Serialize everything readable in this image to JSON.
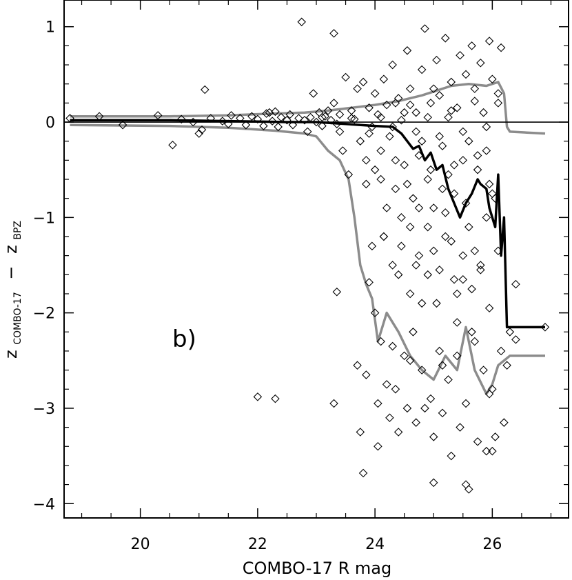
{
  "chart_data": {
    "type": "scatter",
    "panel_label": "b)",
    "xlabel": "COMBO-17 R mag",
    "ylabel": {
      "z1": "z",
      "s1": "COMBO-17",
      "minus": "−",
      "z2": "z",
      "s2": "BPZ"
    },
    "xlim": [
      18.7,
      27.3
    ],
    "ylim": [
      -4.15,
      1.28
    ],
    "x_ticks": [
      20,
      22,
      24,
      26
    ],
    "y_ticks": [
      1,
      0,
      -1,
      -2,
      -3,
      -4
    ],
    "y_tick_labels": [
      "1",
      "0",
      "−1",
      "−2",
      "−3",
      "−4"
    ],
    "zero_line": 0,
    "marker": "open-diamond",
    "colors": {
      "points": "#000000",
      "median": "#000000",
      "envelope": "#8c8c8c",
      "frame": "#000000"
    },
    "points": [
      [
        18.8,
        0.04
      ],
      [
        19.3,
        0.06
      ],
      [
        19.7,
        -0.03
      ],
      [
        20.3,
        0.07
      ],
      [
        20.55,
        -0.24
      ],
      [
        20.7,
        0.03
      ],
      [
        20.9,
        0.0
      ],
      [
        21.0,
        -0.12
      ],
      [
        21.05,
        -0.08
      ],
      [
        21.1,
        0.34
      ],
      [
        21.2,
        0.04
      ],
      [
        21.4,
        0.01
      ],
      [
        21.5,
        -0.02
      ],
      [
        21.55,
        0.07
      ],
      [
        21.7,
        0.04
      ],
      [
        21.8,
        -0.03
      ],
      [
        21.9,
        0.06
      ],
      [
        22.0,
        0.03
      ],
      [
        22.1,
        -0.04
      ],
      [
        22.15,
        0.09
      ],
      [
        22.2,
        0.1
      ],
      [
        22.25,
        0.01
      ],
      [
        22.3,
        0.11
      ],
      [
        22.35,
        -0.05
      ],
      [
        22.4,
        0.05
      ],
      [
        22.5,
        0.02
      ],
      [
        22.55,
        0.08
      ],
      [
        22.6,
        -0.03
      ],
      [
        22.7,
        0.04
      ],
      [
        22.75,
        1.05
      ],
      [
        22.8,
        0.02
      ],
      [
        22.85,
        -0.1
      ],
      [
        22.9,
        0.05
      ],
      [
        22.95,
        0.3
      ],
      [
        23.0,
        0.0
      ],
      [
        23.05,
        0.1
      ],
      [
        23.1,
        -0.04
      ],
      [
        23.15,
        0.06
      ],
      [
        23.2,
        0.12
      ],
      [
        23.25,
        0.02
      ],
      [
        23.3,
        0.93
      ],
      [
        23.3,
        0.2
      ],
      [
        23.35,
        -0.02
      ],
      [
        23.4,
        0.08
      ],
      [
        23.45,
        -0.3
      ],
      [
        23.5,
        0.47
      ],
      [
        23.55,
        -0.55
      ],
      [
        23.6,
        0.12
      ],
      [
        23.65,
        0.03
      ],
      [
        23.7,
        0.35
      ],
      [
        23.75,
        -0.2
      ],
      [
        23.8,
        0.42
      ],
      [
        23.85,
        -0.65
      ],
      [
        23.9,
        0.15
      ],
      [
        23.95,
        -0.05
      ],
      [
        24.0,
        0.3
      ],
      [
        24.0,
        -0.5
      ],
      [
        24.05,
        0.08
      ],
      [
        24.1,
        -0.3
      ],
      [
        24.15,
        0.45
      ],
      [
        24.2,
        0.18
      ],
      [
        24.25,
        -0.15
      ],
      [
        24.3,
        0.6
      ],
      [
        24.35,
        -0.7
      ],
      [
        24.4,
        0.25
      ],
      [
        24.45,
        0.02
      ],
      [
        24.5,
        -0.45
      ],
      [
        24.55,
        0.75
      ],
      [
        24.6,
        0.35
      ],
      [
        24.65,
        -0.8
      ],
      [
        24.7,
        0.1
      ],
      [
        24.75,
        -0.35
      ],
      [
        24.8,
        0.55
      ],
      [
        24.85,
        0.98
      ],
      [
        24.9,
        -0.6
      ],
      [
        24.95,
        0.2
      ],
      [
        25.0,
        -0.9
      ],
      [
        25.05,
        0.65
      ],
      [
        25.1,
        0.28
      ],
      [
        25.15,
        -0.25
      ],
      [
        25.2,
        0.88
      ],
      [
        25.25,
        -0.55
      ],
      [
        25.3,
        0.42
      ],
      [
        25.35,
        -0.75
      ],
      [
        25.4,
        0.15
      ],
      [
        25.45,
        0.7
      ],
      [
        25.5,
        -0.4
      ],
      [
        25.55,
        0.5
      ],
      [
        25.6,
        -0.2
      ],
      [
        25.65,
        0.8
      ],
      [
        25.7,
        0.35
      ],
      [
        25.75,
        -0.5
      ],
      [
        25.8,
        0.62
      ],
      [
        25.85,
        0.1
      ],
      [
        25.9,
        -0.3
      ],
      [
        25.95,
        0.85
      ],
      [
        26.0,
        0.45
      ],
      [
        26.05,
        -0.8
      ],
      [
        26.1,
        0.2
      ],
      [
        26.15,
        0.78
      ],
      [
        24.3,
        -0.05
      ],
      [
        24.5,
        0.1
      ],
      [
        24.7,
        -0.1
      ],
      [
        24.9,
        0.05
      ],
      [
        25.1,
        -0.15
      ],
      [
        25.3,
        0.12
      ],
      [
        25.5,
        -0.1
      ],
      [
        25.7,
        0.22
      ],
      [
        25.9,
        -0.05
      ],
      [
        26.1,
        0.3
      ],
      [
        23.1,
        0.05
      ],
      [
        23.4,
        -0.1
      ],
      [
        23.6,
        0.04
      ],
      [
        23.9,
        -0.12
      ],
      [
        24.1,
        0.05
      ],
      [
        24.35,
        0.2
      ],
      [
        24.6,
        0.18
      ],
      [
        24.8,
        -0.2
      ],
      [
        25.0,
        0.35
      ],
      [
        25.25,
        0.05
      ],
      [
        22.0,
        -2.88
      ],
      [
        22.3,
        -2.9
      ],
      [
        23.3,
        -2.95
      ],
      [
        23.35,
        -1.78
      ],
      [
        23.7,
        -2.55
      ],
      [
        23.75,
        -3.25
      ],
      [
        23.8,
        -3.68
      ],
      [
        23.85,
        -2.65
      ],
      [
        23.9,
        -1.68
      ],
      [
        23.95,
        -1.3
      ],
      [
        24.0,
        -2.0
      ],
      [
        24.05,
        -3.4
      ],
      [
        24.1,
        -2.3
      ],
      [
        24.15,
        -1.2
      ],
      [
        24.2,
        -2.75
      ],
      [
        24.25,
        -3.1
      ],
      [
        24.3,
        -1.5
      ],
      [
        24.35,
        -2.8
      ],
      [
        24.4,
        -3.25
      ],
      [
        24.45,
        -1.0
      ],
      [
        24.5,
        -2.45
      ],
      [
        24.55,
        -3.0
      ],
      [
        24.6,
        -1.8
      ],
      [
        24.65,
        -2.2
      ],
      [
        24.7,
        -3.15
      ],
      [
        24.75,
        -1.4
      ],
      [
        24.8,
        -2.6
      ],
      [
        24.85,
        -3.0
      ],
      [
        24.9,
        -1.6
      ],
      [
        24.95,
        -2.9
      ],
      [
        25.0,
        -3.3
      ],
      [
        25.05,
        -1.9
      ],
      [
        25.1,
        -2.4
      ],
      [
        25.15,
        -3.05
      ],
      [
        25.2,
        -1.2
      ],
      [
        25.25,
        -2.7
      ],
      [
        25.3,
        -3.5
      ],
      [
        25.35,
        -1.65
      ],
      [
        25.4,
        -2.1
      ],
      [
        25.45,
        -3.2
      ],
      [
        25.5,
        -1.4
      ],
      [
        25.55,
        -2.95
      ],
      [
        25.6,
        -3.85
      ],
      [
        25.65,
        -1.75
      ],
      [
        25.7,
        -2.3
      ],
      [
        25.75,
        -3.35
      ],
      [
        25.8,
        -1.5
      ],
      [
        25.85,
        -2.6
      ],
      [
        25.9,
        -3.45
      ],
      [
        25.95,
        -1.95
      ],
      [
        26.0,
        -2.8
      ],
      [
        26.05,
        -3.3
      ],
      [
        26.1,
        -1.35
      ],
      [
        26.15,
        -2.4
      ],
      [
        26.2,
        -3.15
      ],
      [
        26.25,
        -2.55
      ],
      [
        26.3,
        -2.2
      ],
      [
        26.4,
        -1.7
      ],
      [
        26.4,
        -2.28
      ],
      [
        26.9,
        -2.15
      ],
      [
        25.0,
        -3.78
      ],
      [
        25.55,
        -3.8
      ],
      [
        26.0,
        -3.45
      ],
      [
        24.05,
        -2.95
      ],
      [
        24.3,
        -2.35
      ],
      [
        24.6,
        -2.5
      ],
      [
        25.15,
        -2.55
      ],
      [
        25.4,
        -2.45
      ],
      [
        25.65,
        -2.2
      ],
      [
        25.95,
        -2.85
      ],
      [
        24.2,
        -0.9
      ],
      [
        24.4,
        -1.6
      ],
      [
        24.6,
        -1.1
      ],
      [
        24.8,
        -1.9
      ],
      [
        25.0,
        -1.35
      ],
      [
        25.2,
        -0.95
      ],
      [
        25.4,
        -1.8
      ],
      [
        25.6,
        -1.1
      ],
      [
        25.8,
        -1.55
      ],
      [
        26.0,
        -0.75
      ],
      [
        24.1,
        -0.6
      ],
      [
        24.35,
        -0.4
      ],
      [
        24.55,
        -0.65
      ],
      [
        24.75,
        -0.9
      ],
      [
        24.95,
        -0.5
      ],
      [
        25.15,
        -0.7
      ],
      [
        25.35,
        -0.45
      ],
      [
        25.55,
        -0.85
      ],
      [
        25.75,
        -0.35
      ],
      [
        25.95,
        -0.65
      ],
      [
        23.85,
        -0.4
      ],
      [
        24.15,
        -1.2
      ],
      [
        24.45,
        -1.3
      ],
      [
        24.7,
        -1.5
      ],
      [
        24.9,
        -1.1
      ],
      [
        25.1,
        -1.55
      ],
      [
        25.3,
        -1.25
      ],
      [
        25.5,
        -1.65
      ],
      [
        25.7,
        -1.35
      ],
      [
        25.9,
        -1.0
      ]
    ],
    "median_line": [
      [
        18.8,
        0.02
      ],
      [
        20.5,
        0.02
      ],
      [
        21.5,
        0.01
      ],
      [
        22.5,
        0.0
      ],
      [
        23.0,
        0.0
      ],
      [
        23.5,
        -0.02
      ],
      [
        24.0,
        -0.04
      ],
      [
        24.3,
        -0.05
      ],
      [
        24.45,
        -0.12
      ],
      [
        24.55,
        -0.2
      ],
      [
        24.65,
        -0.28
      ],
      [
        24.75,
        -0.25
      ],
      [
        24.85,
        -0.4
      ],
      [
        24.95,
        -0.32
      ],
      [
        25.05,
        -0.5
      ],
      [
        25.15,
        -0.45
      ],
      [
        25.25,
        -0.7
      ],
      [
        25.35,
        -0.85
      ],
      [
        25.45,
        -1.0
      ],
      [
        25.55,
        -0.85
      ],
      [
        25.65,
        -0.75
      ],
      [
        25.75,
        -0.6
      ],
      [
        25.8,
        -0.65
      ],
      [
        25.9,
        -0.7
      ],
      [
        25.95,
        -0.9
      ],
      [
        26.05,
        -1.1
      ],
      [
        26.1,
        -0.55
      ],
      [
        26.15,
        -1.4
      ],
      [
        26.2,
        -1.0
      ],
      [
        26.25,
        -2.15
      ],
      [
        26.3,
        -2.15
      ],
      [
        26.9,
        -2.15
      ]
    ],
    "envelope_upper": [
      [
        18.8,
        0.06
      ],
      [
        20.5,
        0.06
      ],
      [
        21.5,
        0.07
      ],
      [
        22.3,
        0.09
      ],
      [
        22.8,
        0.1
      ],
      [
        23.2,
        0.12
      ],
      [
        23.6,
        0.15
      ],
      [
        24.0,
        0.18
      ],
      [
        24.4,
        0.22
      ],
      [
        24.8,
        0.28
      ],
      [
        25.0,
        0.32
      ],
      [
        25.3,
        0.38
      ],
      [
        25.6,
        0.4
      ],
      [
        25.9,
        0.38
      ],
      [
        26.1,
        0.42
      ],
      [
        26.2,
        0.3
      ],
      [
        26.25,
        -0.05
      ],
      [
        26.3,
        -0.1
      ],
      [
        26.9,
        -0.12
      ]
    ],
    "envelope_lower": [
      [
        18.8,
        -0.03
      ],
      [
        20.5,
        -0.04
      ],
      [
        21.5,
        -0.06
      ],
      [
        22.3,
        -0.09
      ],
      [
        22.8,
        -0.12
      ],
      [
        23.0,
        -0.15
      ],
      [
        23.2,
        -0.3
      ],
      [
        23.4,
        -0.4
      ],
      [
        23.55,
        -0.6
      ],
      [
        23.65,
        -1.0
      ],
      [
        23.75,
        -1.5
      ],
      [
        23.85,
        -1.7
      ],
      [
        23.95,
        -1.85
      ],
      [
        24.05,
        -2.3
      ],
      [
        24.2,
        -2.0
      ],
      [
        24.4,
        -2.2
      ],
      [
        24.6,
        -2.45
      ],
      [
        24.8,
        -2.6
      ],
      [
        25.0,
        -2.7
      ],
      [
        25.2,
        -2.45
      ],
      [
        25.4,
        -2.6
      ],
      [
        25.55,
        -2.15
      ],
      [
        25.7,
        -2.6
      ],
      [
        25.9,
        -2.85
      ],
      [
        26.0,
        -2.75
      ],
      [
        26.1,
        -2.55
      ],
      [
        26.3,
        -2.45
      ],
      [
        26.9,
        -2.45
      ]
    ]
  }
}
